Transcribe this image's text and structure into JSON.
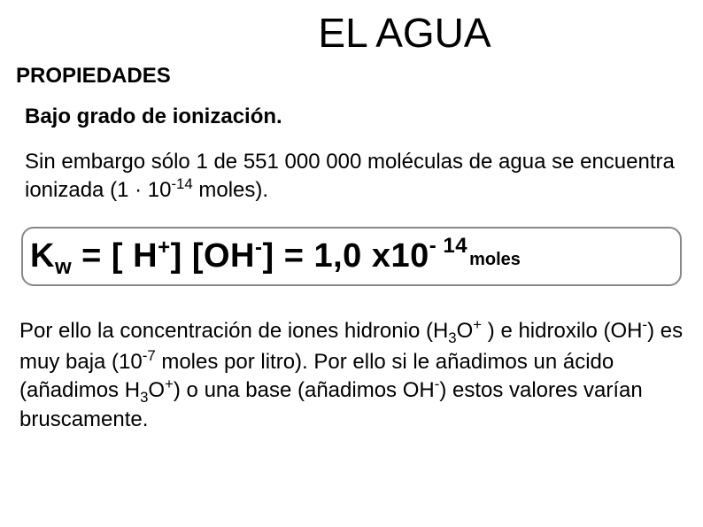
{
  "title": "EL AGUA",
  "section": "PROPIEDADES",
  "subhead": "Bajo grado de ionización.",
  "p1_a": "Sin embargo sólo 1 de 551 000 000 moléculas de agua se encuentra ionizada (1 · 10",
  "p1_sup": "-14",
  "p1_b": " moles).",
  "formula": {
    "Kw": "K",
    "w": "w",
    "eq1": " = [ H",
    "plus": "+",
    "br1": "]   [OH",
    "minus1": "-",
    "br2": "] = 1,0 x10",
    "minus2": "-",
    "exp14": " 14",
    "moles": "moles"
  },
  "p2_a": "Por ello la concentración de iones hidronio (H",
  "p2_sub3a": "3",
  "p2_b": "O",
  "p2_supplus": "+",
  "p2_c": " ) e hidroxilo (OH",
  "p2_supminus": "-",
  "p2_d": ") es muy baja (10",
  "p2_supm7": "-7",
  "p2_e": " moles por litro). Por ello si le añadimos un ácido (añadimos H",
  "p2_sub3b": "3",
  "p2_f": "O",
  "p2_supplus2": "+",
  "p2_g": ") o una base (añadimos OH",
  "p2_supminus2": "-",
  "p2_h": ") estos valores varían bruscamente."
}
